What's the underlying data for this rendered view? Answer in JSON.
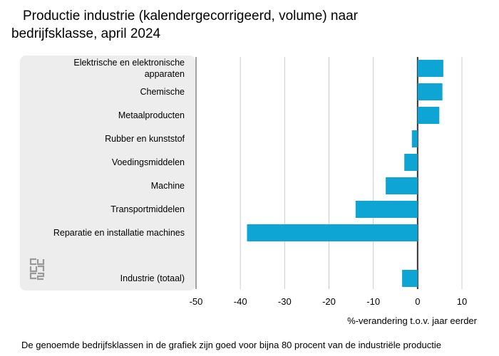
{
  "title_line1": "Productie industrie (kalendergecorrigeerd, volume) naar",
  "title_line2": "bedrijfsklasse, april 2024",
  "footnote": "De genoemde bedrijfsklassen in de grafiek zijn goed voor bijna 80 procent van de industriële productie",
  "logo_text": "cbs",
  "colors": {
    "bar": "#0ea5d5",
    "panel": "#ededed",
    "grid": "#cccccc",
    "axis": "#333333"
  },
  "chart_data": {
    "type": "bar",
    "orientation": "horizontal",
    "categories": [
      [
        "Elektrische en elektronische",
        "apparaten"
      ],
      [
        "Chemische"
      ],
      [
        "Metaalproducten"
      ],
      [
        "Rubber en kunststof"
      ],
      [
        "Voedingsmiddelen"
      ],
      [
        "Machine"
      ],
      [
        "Transportmiddelen"
      ],
      [
        "Reparatie en installatie machines"
      ],
      [
        "Industrie (totaal)"
      ]
    ],
    "values": [
      5.8,
      5.6,
      4.9,
      -1.3,
      -3.0,
      -7.2,
      -14.0,
      -38.5,
      -3.5
    ],
    "xlim": [
      -50,
      10
    ],
    "xticks": [
      -50,
      -40,
      -30,
      -20,
      -10,
      0,
      10
    ],
    "xlabel": "%-verandering t.o.v. jaar eerder",
    "grid": true
  }
}
